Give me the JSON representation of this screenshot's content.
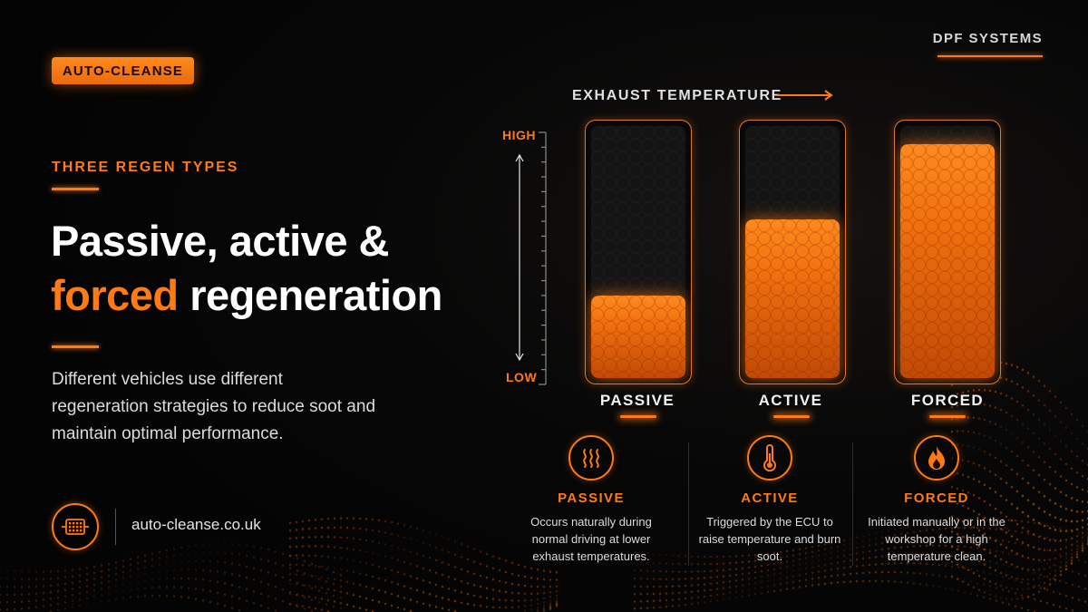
{
  "badge": {
    "label": "AUTO-CLEANSE"
  },
  "corner": {
    "label": "DPF SYSTEMS"
  },
  "kicker": "THREE REGEN TYPES",
  "headline": {
    "line1": "Passive, active &",
    "highlight": "forced",
    "line2_rest": " regeneration"
  },
  "description": "Different vehicles use different regeneration strategies to reduce soot and maintain optimal performance.",
  "footer": {
    "url": "auto-cleanse.co.uk",
    "icon": "dpf-filter-icon"
  },
  "chart": {
    "axis_title": "EXHAUST TEMPERATURE",
    "high_label": "HIGH",
    "low_label": "LOW",
    "bars": [
      {
        "label": "PASSIVE",
        "level": 0.33
      },
      {
        "label": "ACTIVE",
        "level": 0.63
      },
      {
        "label": "FORCED",
        "level": 0.93
      }
    ]
  },
  "cards": [
    {
      "title": "PASSIVE",
      "icon": "heat-waves-icon",
      "text": "Occurs naturally during normal driving at lower exhaust temperatures."
    },
    {
      "title": "ACTIVE",
      "icon": "thermometer-icon",
      "text": "Triggered by the ECU to raise temperature and burn soot."
    },
    {
      "title": "FORCED",
      "icon": "flame-icon",
      "text": "Initiated manually or in the workshop for a high temperature clean."
    }
  ],
  "colors": {
    "accent": "#ff7a14",
    "background": "#050505"
  }
}
